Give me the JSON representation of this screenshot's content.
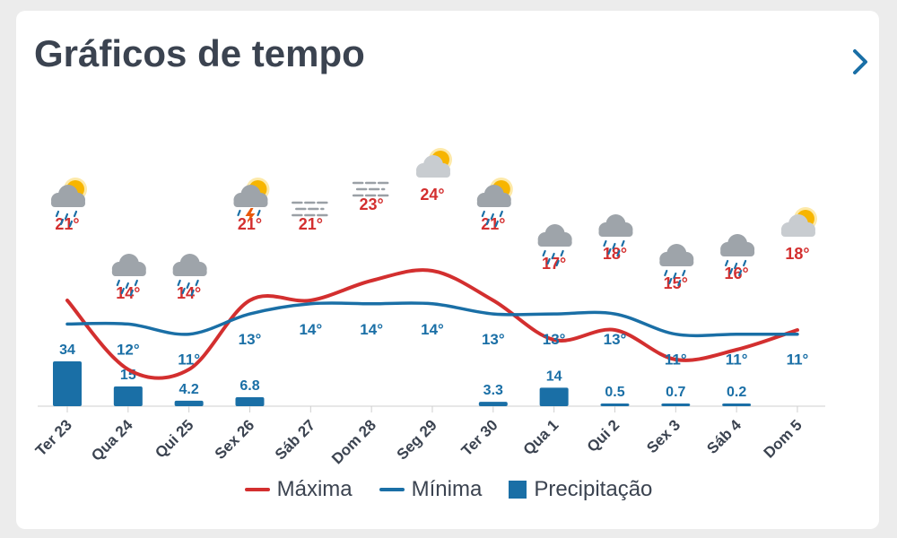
{
  "header": {
    "title": "Gráficos de tempo",
    "next_icon": "chevron-right-icon"
  },
  "colors": {
    "max": "#d32f2f",
    "min": "#1a6fa6",
    "precip": "#1a6fa6",
    "text": "#3b4350"
  },
  "legend": [
    {
      "label": "Máxima",
      "kind": "line",
      "color": "#d32f2f"
    },
    {
      "label": "Mínima",
      "kind": "line",
      "color": "#1a6fa6"
    },
    {
      "label": "Precipitação",
      "kind": "box",
      "color": "#1a6fa6"
    }
  ],
  "chart_data": {
    "type": "line",
    "categories": [
      "Ter 23",
      "Qua 24",
      "Qui 25",
      "Sex 26",
      "Sáb 27",
      "Dom 28",
      "Seg 29",
      "Ter 30",
      "Qua 1",
      "Qui 2",
      "Sex 3",
      "Sáb 4",
      "Dom 5"
    ],
    "icons": [
      "sun-cloud-rain-icon",
      "cloud-rain-icon",
      "cloud-rain-icon",
      "sun-cloud-storm-icon",
      "fog-icon",
      "fog-icon",
      "sun-cloud-icon",
      "sun-cloud-rain-icon",
      "cloud-rain-icon",
      "cloud-rain-icon",
      "cloud-rain-icon",
      "cloud-rain-icon",
      "sun-cloud-icon"
    ],
    "series": [
      {
        "name": "Máxima",
        "values": [
          21,
          14,
          14,
          21,
          21,
          23,
          24,
          21,
          17,
          18,
          15,
          16,
          18
        ],
        "labels": [
          "21°",
          "14°",
          "14°",
          "21°",
          "21°",
          "23°",
          "24°",
          "21°",
          "17°",
          "18°",
          "15°",
          "16°",
          "18°"
        ]
      },
      {
        "name": "Mínima",
        "values": [
          12,
          12,
          11,
          13,
          14,
          14,
          14,
          13,
          13,
          13,
          11,
          11,
          11
        ],
        "labels": [
          "",
          "12°",
          "11°",
          "13°",
          "14°",
          "14°",
          "14°",
          "13°",
          "13°",
          "13°",
          "11°",
          "11°",
          "11°"
        ]
      },
      {
        "name": "Precipitação",
        "type": "bar",
        "values": [
          34,
          15,
          4.2,
          6.8,
          0,
          0,
          0,
          3.3,
          14,
          0.5,
          0.7,
          0.2,
          0
        ],
        "labels": [
          "34",
          "15",
          "4.2",
          "6.8",
          "",
          "",
          "",
          "3.3",
          "14",
          "0.5",
          "0.7",
          "0.2",
          ""
        ]
      }
    ]
  }
}
